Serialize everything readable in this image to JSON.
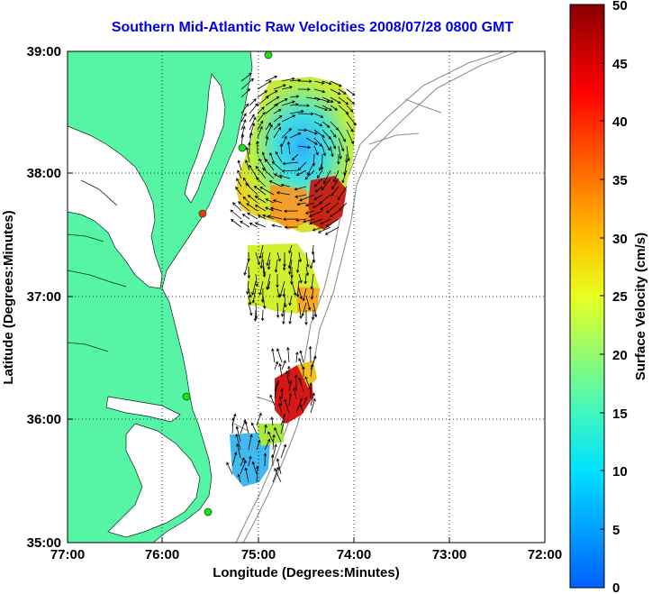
{
  "title": "Southern Mid-Atlantic Raw Velocities 2008/07/28 0800 GMT",
  "xlabel": "Longitude (Degrees:Minutes)",
  "ylabel": "Latitude (Degrees:Minutes)",
  "xticks": [
    "77:00",
    "76:00",
    "75:00",
    "74:00",
    "73:00",
    "72:00"
  ],
  "yticks": [
    "39:00",
    "38:00",
    "37:00",
    "36:00",
    "35:00"
  ],
  "colorbar": {
    "label": "Surface Velocity (cm/s)",
    "ticks": [
      "0",
      "5",
      "10",
      "15",
      "20",
      "25",
      "30",
      "35",
      "40",
      "45",
      "50"
    ],
    "min": 0,
    "max": 50
  },
  "colors": {
    "land": "#55f5a5",
    "title": "#0000ee",
    "bathymetry": "#909090",
    "station": "#22dd22"
  },
  "legend": "none"
}
